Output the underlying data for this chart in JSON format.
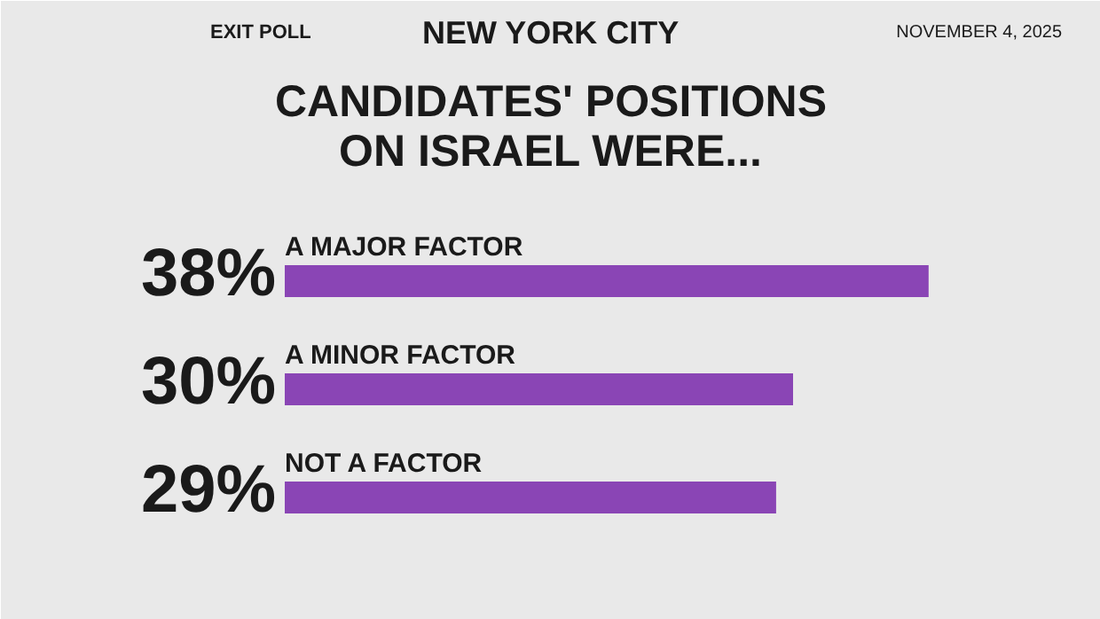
{
  "chart_data": {
    "type": "bar",
    "orientation": "horizontal",
    "title": "NEW YORK CITY",
    "subtitle": "CANDIDATES' POSITIONS ON ISRAEL WERE...",
    "annotations": [
      "EXIT POLL",
      "NOVEMBER 4, 2025"
    ],
    "categories": [
      "A MAJOR FACTOR",
      "A MINOR FACTOR",
      "NOT A FACTOR"
    ],
    "values": [
      38,
      30,
      29
    ],
    "value_labels": [
      "38%",
      "30%",
      "29%"
    ],
    "color": "#8a45b5"
  }
}
